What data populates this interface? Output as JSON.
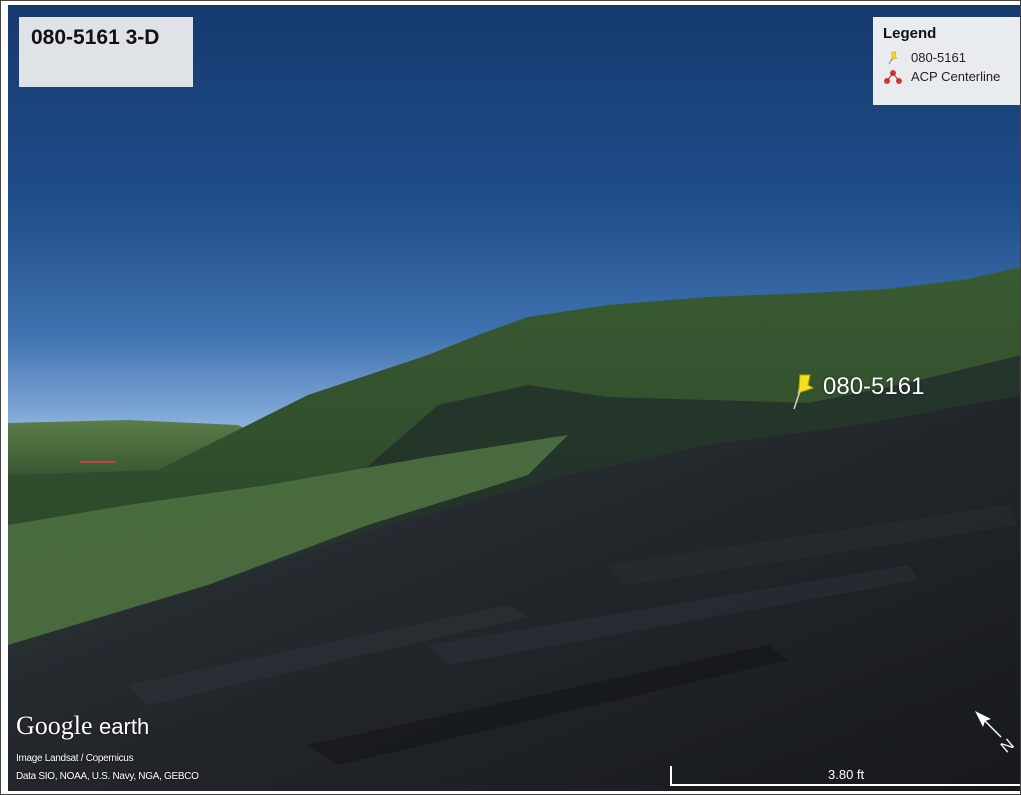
{
  "title": "080-5161 3-D",
  "legend": {
    "title": "Legend",
    "items": [
      {
        "label": "080-5161",
        "icon": "yellow-pushpin-icon",
        "color": "#f4e21c"
      },
      {
        "label": "ACP Centerline",
        "icon": "red-route-icon",
        "color": "#d33a3a"
      }
    ]
  },
  "placemark": {
    "label": "080-5161",
    "icon": "yellow-pushpin-icon",
    "color": "#f4e21c"
  },
  "brand": {
    "google": "Google",
    "earth": "earth"
  },
  "credits": {
    "line1": "Image Landsat / Copernicus",
    "line2": "Data SIO, NOAA, U.S. Navy, NGA, GEBCO"
  },
  "scale": {
    "label": "3.80 ft"
  },
  "compass": {
    "icon": "north-arrow-icon",
    "letter": "N"
  },
  "colors": {
    "sky_top": "#163a6e",
    "sky_horizon": "#a8c6e6",
    "ridge": "#2c4a2a",
    "foreground": "#1c1f24",
    "centerline": "#d33a3a"
  }
}
